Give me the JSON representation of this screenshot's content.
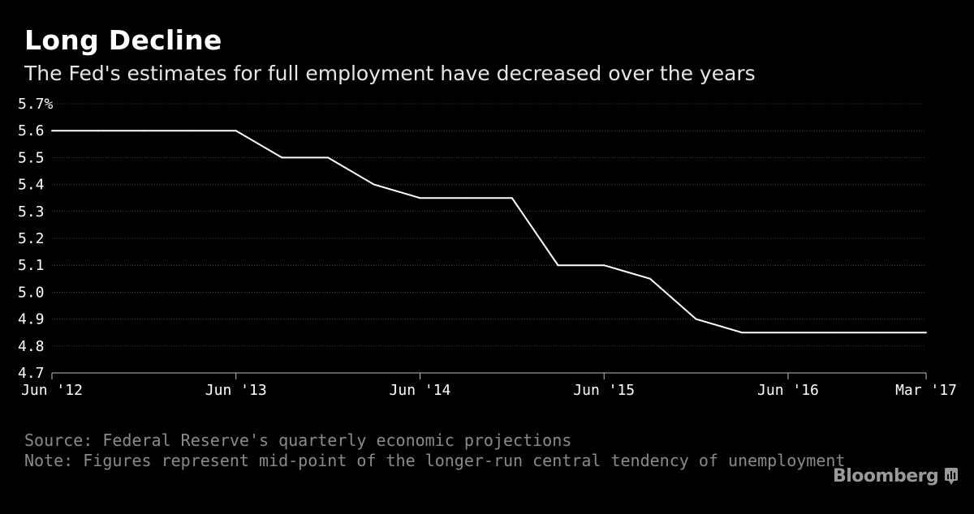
{
  "header": {
    "title": "Long Decline",
    "subtitle": "The Fed's estimates for full employment have decreased over the years"
  },
  "footer": {
    "source": "Source: Federal Reserve's quarterly economic projections",
    "note": "Note: Figures represent mid-point of the longer-run central tendency of unemployment",
    "brand": "Bloomberg"
  },
  "colors": {
    "background": "#000000",
    "line": "#ffffff",
    "grid": "#4a4a4a",
    "axis_text": "#ffffff",
    "footnote": "#8a8a8a"
  },
  "chart_data": {
    "type": "line",
    "title": "Long Decline",
    "subtitle": "The Fed's estimates for full employment have decreased over the years",
    "xlabel": "",
    "ylabel": "",
    "y_unit_suffix": "%",
    "ylim": [
      4.7,
      5.7
    ],
    "y_ticks": [
      "5.7%",
      "5.6",
      "5.5",
      "5.4",
      "5.3",
      "5.2",
      "5.1",
      "5.0",
      "4.9",
      "4.8",
      "4.7"
    ],
    "y_tick_values": [
      5.7,
      5.6,
      5.5,
      5.4,
      5.3,
      5.2,
      5.1,
      5.0,
      4.9,
      4.8,
      4.7
    ],
    "xlim": [
      "2012-06",
      "2017-03"
    ],
    "x_ticks": [
      {
        "label": "Jun '12",
        "x": "2012-06"
      },
      {
        "label": "Jun '13",
        "x": "2013-06"
      },
      {
        "label": "Jun '14",
        "x": "2014-06"
      },
      {
        "label": "Jun '15",
        "x": "2015-06"
      },
      {
        "label": "Jun '16",
        "x": "2016-06"
      },
      {
        "label": "Mar '17",
        "x": "2017-03"
      }
    ],
    "grid": true,
    "legend": "none",
    "series": [
      {
        "x": [
          "2012-06",
          "2012-09",
          "2012-12",
          "2013-03",
          "2013-06",
          "2013-09",
          "2013-12",
          "2014-03",
          "2014-06",
          "2014-09",
          "2014-12",
          "2015-03",
          "2015-06",
          "2015-09",
          "2015-12",
          "2016-03",
          "2016-06",
          "2016-09",
          "2016-12",
          "2017-03"
        ],
        "values": [
          5.6,
          5.6,
          5.6,
          5.6,
          5.6,
          5.5,
          5.5,
          5.4,
          5.35,
          5.35,
          5.35,
          5.1,
          5.1,
          5.05,
          4.9,
          4.85,
          4.85,
          4.85,
          4.85,
          4.85
        ]
      }
    ]
  }
}
